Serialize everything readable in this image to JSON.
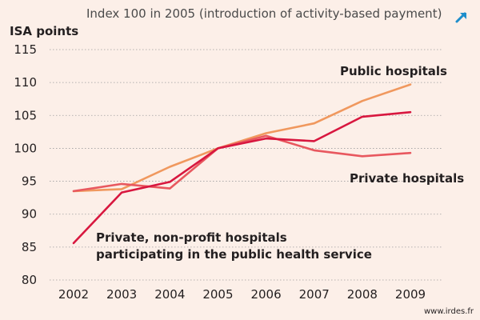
{
  "chart_data": {
    "type": "line",
    "subtitle": "Index 100 in 2005 (introduction of activity-based payment)",
    "ylabel": "ISA points",
    "xlabel": "",
    "categories": [
      "2002",
      "2003",
      "2004",
      "2005",
      "2006",
      "2007",
      "2008",
      "2009"
    ],
    "y_ticks": [
      "115",
      "110",
      "105",
      "100",
      "95",
      "90",
      "85",
      "80"
    ],
    "ylim": [
      80,
      115
    ],
    "grid": true,
    "series": [
      {
        "name": "Public hospitals",
        "color": "#f0985e",
        "values": [
          93.5,
          93.8,
          97.2,
          100.0,
          102.3,
          103.8,
          107.2,
          109.7
        ]
      },
      {
        "name": "Private hospitals",
        "color": "#e8585f",
        "values": [
          93.5,
          94.6,
          93.9,
          100.0,
          101.9,
          99.7,
          98.8,
          99.3
        ]
      },
      {
        "name": "Private, non-profit hospitals participating in the public health service",
        "name_lines": [
          "Private, non-profit hospitals",
          "participating in the public health service"
        ],
        "color": "#d8173f",
        "values": [
          85.6,
          93.3,
          94.9,
          100.0,
          101.5,
          101.1,
          104.8,
          105.5
        ]
      }
    ],
    "source": "www.irdes.fr"
  },
  "colors": {
    "background": "#fcefe8",
    "icon": "#1e8ecb"
  },
  "icons": {
    "expand": "expand-arrow-icon"
  }
}
